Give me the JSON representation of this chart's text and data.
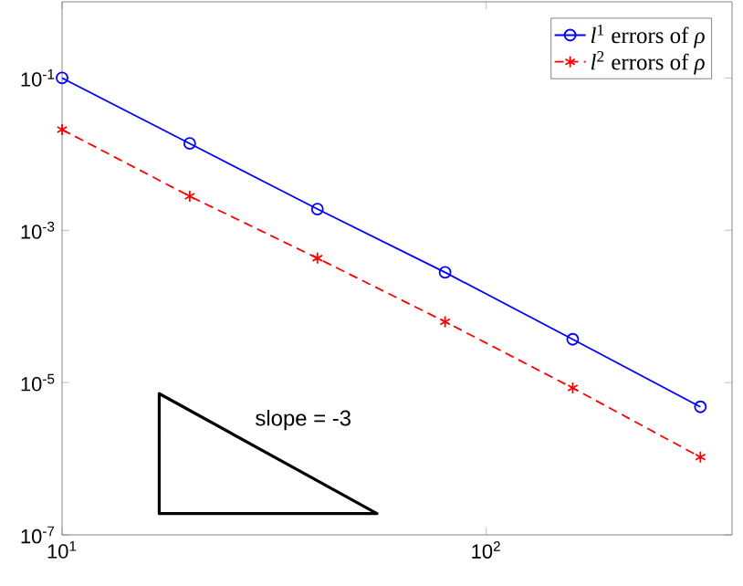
{
  "chart_data": {
    "type": "line",
    "log": "xy",
    "legend": "top right",
    "grid": false,
    "x": [
      10,
      20,
      40,
      80,
      160,
      320
    ],
    "xlim": [
      10,
      380
    ],
    "ylim": [
      1e-07,
      1
    ],
    "xticks": [
      {
        "value": 10,
        "label": "10$^{1}$"
      },
      {
        "value": 100,
        "label": "10$^{2}$"
      }
    ],
    "yticks": [
      {
        "value": 1e-07,
        "label": "10$^{-7}$"
      },
      {
        "value": 1e-05,
        "label": "10$^{-5}$"
      },
      {
        "value": 0.001,
        "label": "10$^{-3}$"
      },
      {
        "value": 0.1,
        "label": "10$^{-1}$"
      }
    ],
    "series": [
      {
        "name": "*l*$^{1}$ errors of *ρ*",
        "color": "#0000ff",
        "marker": "circle",
        "line_style": "solid",
        "values": [
          0.1,
          0.0138,
          0.0019,
          0.00028,
          3.7e-05,
          4.8e-06
        ]
      },
      {
        "name": "*l*$^{2}$ errors of *ρ*",
        "color": "#ff0000",
        "marker": "cross",
        "line_style": "dashed",
        "values": [
          0.021,
          0.0028,
          0.00043,
          6.3e-05,
          8.5e-06,
          1.05e-06
        ]
      }
    ],
    "annotations": [
      "slope = -3"
    ]
  }
}
